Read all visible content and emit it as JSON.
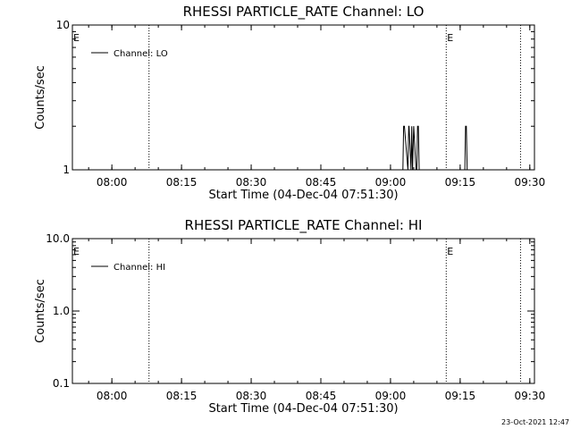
{
  "footer": {
    "timestamp": "23-Oct-2021 12:47"
  },
  "chart_data": [
    {
      "type": "line",
      "title": "RHESSI PARTICLE_RATE Channel: LO",
      "xlabel": "Start Time (04-Dec-04 07:51:30)",
      "ylabel": "Counts/sec",
      "xlim": [
        "07:51:30",
        "09:31:00"
      ],
      "ylim": [
        1,
        10
      ],
      "yscale": "log",
      "x_ticks": [
        "08:00",
        "08:15",
        "08:30",
        "08:45",
        "09:00",
        "09:15",
        "09:30"
      ],
      "y_ticks": [
        "1",
        "10"
      ],
      "legend": {
        "label": "Channel: LO",
        "position": "top-left"
      },
      "event_markers": [
        {
          "time": "08:08:00",
          "label": ""
        },
        {
          "time": "09:12:00",
          "label": "E"
        },
        {
          "time": "09:28:00",
          "label": ""
        }
      ],
      "edge_labels": [
        "E"
      ],
      "grid": false,
      "series": [
        {
          "x": [
            "09:02:40",
            "09:02:50",
            "09:03:00",
            "09:03:45",
            "09:03:55",
            "09:04:00",
            "09:04:25",
            "09:04:35",
            "09:04:45",
            "09:05:00",
            "09:05:30",
            "09:05:40",
            "09:05:50",
            "09:06:00",
            "09:06:10",
            "09:06:20",
            "09:06:40",
            "09:16:00",
            "09:16:10",
            "09:16:20",
            "09:16:30",
            "09:16:40"
          ],
          "y": [
            1,
            2,
            2,
            1,
            2,
            2,
            1,
            2,
            1,
            2,
            1,
            1,
            2,
            2,
            1,
            1,
            1,
            1,
            2,
            2,
            1,
            1
          ]
        }
      ]
    },
    {
      "type": "line",
      "title": "RHESSI PARTICLE_RATE Channel: HI",
      "xlabel": "Start Time (04-Dec-04 07:51:30)",
      "ylabel": "Counts/sec",
      "xlim": [
        "07:51:30",
        "09:31:00"
      ],
      "ylim": [
        0.1,
        10
      ],
      "yscale": "log",
      "x_ticks": [
        "08:00",
        "08:15",
        "08:30",
        "08:45",
        "09:00",
        "09:15",
        "09:30"
      ],
      "y_ticks": [
        "0.1",
        "1.0",
        "10.0"
      ],
      "legend": {
        "label": "Channel: HI",
        "position": "top-left"
      },
      "event_markers": [
        {
          "time": "08:08:00",
          "label": ""
        },
        {
          "time": "09:12:00",
          "label": "E"
        },
        {
          "time": "09:28:00",
          "label": ""
        }
      ],
      "edge_labels": [
        "E"
      ],
      "grid": false,
      "series": []
    }
  ]
}
